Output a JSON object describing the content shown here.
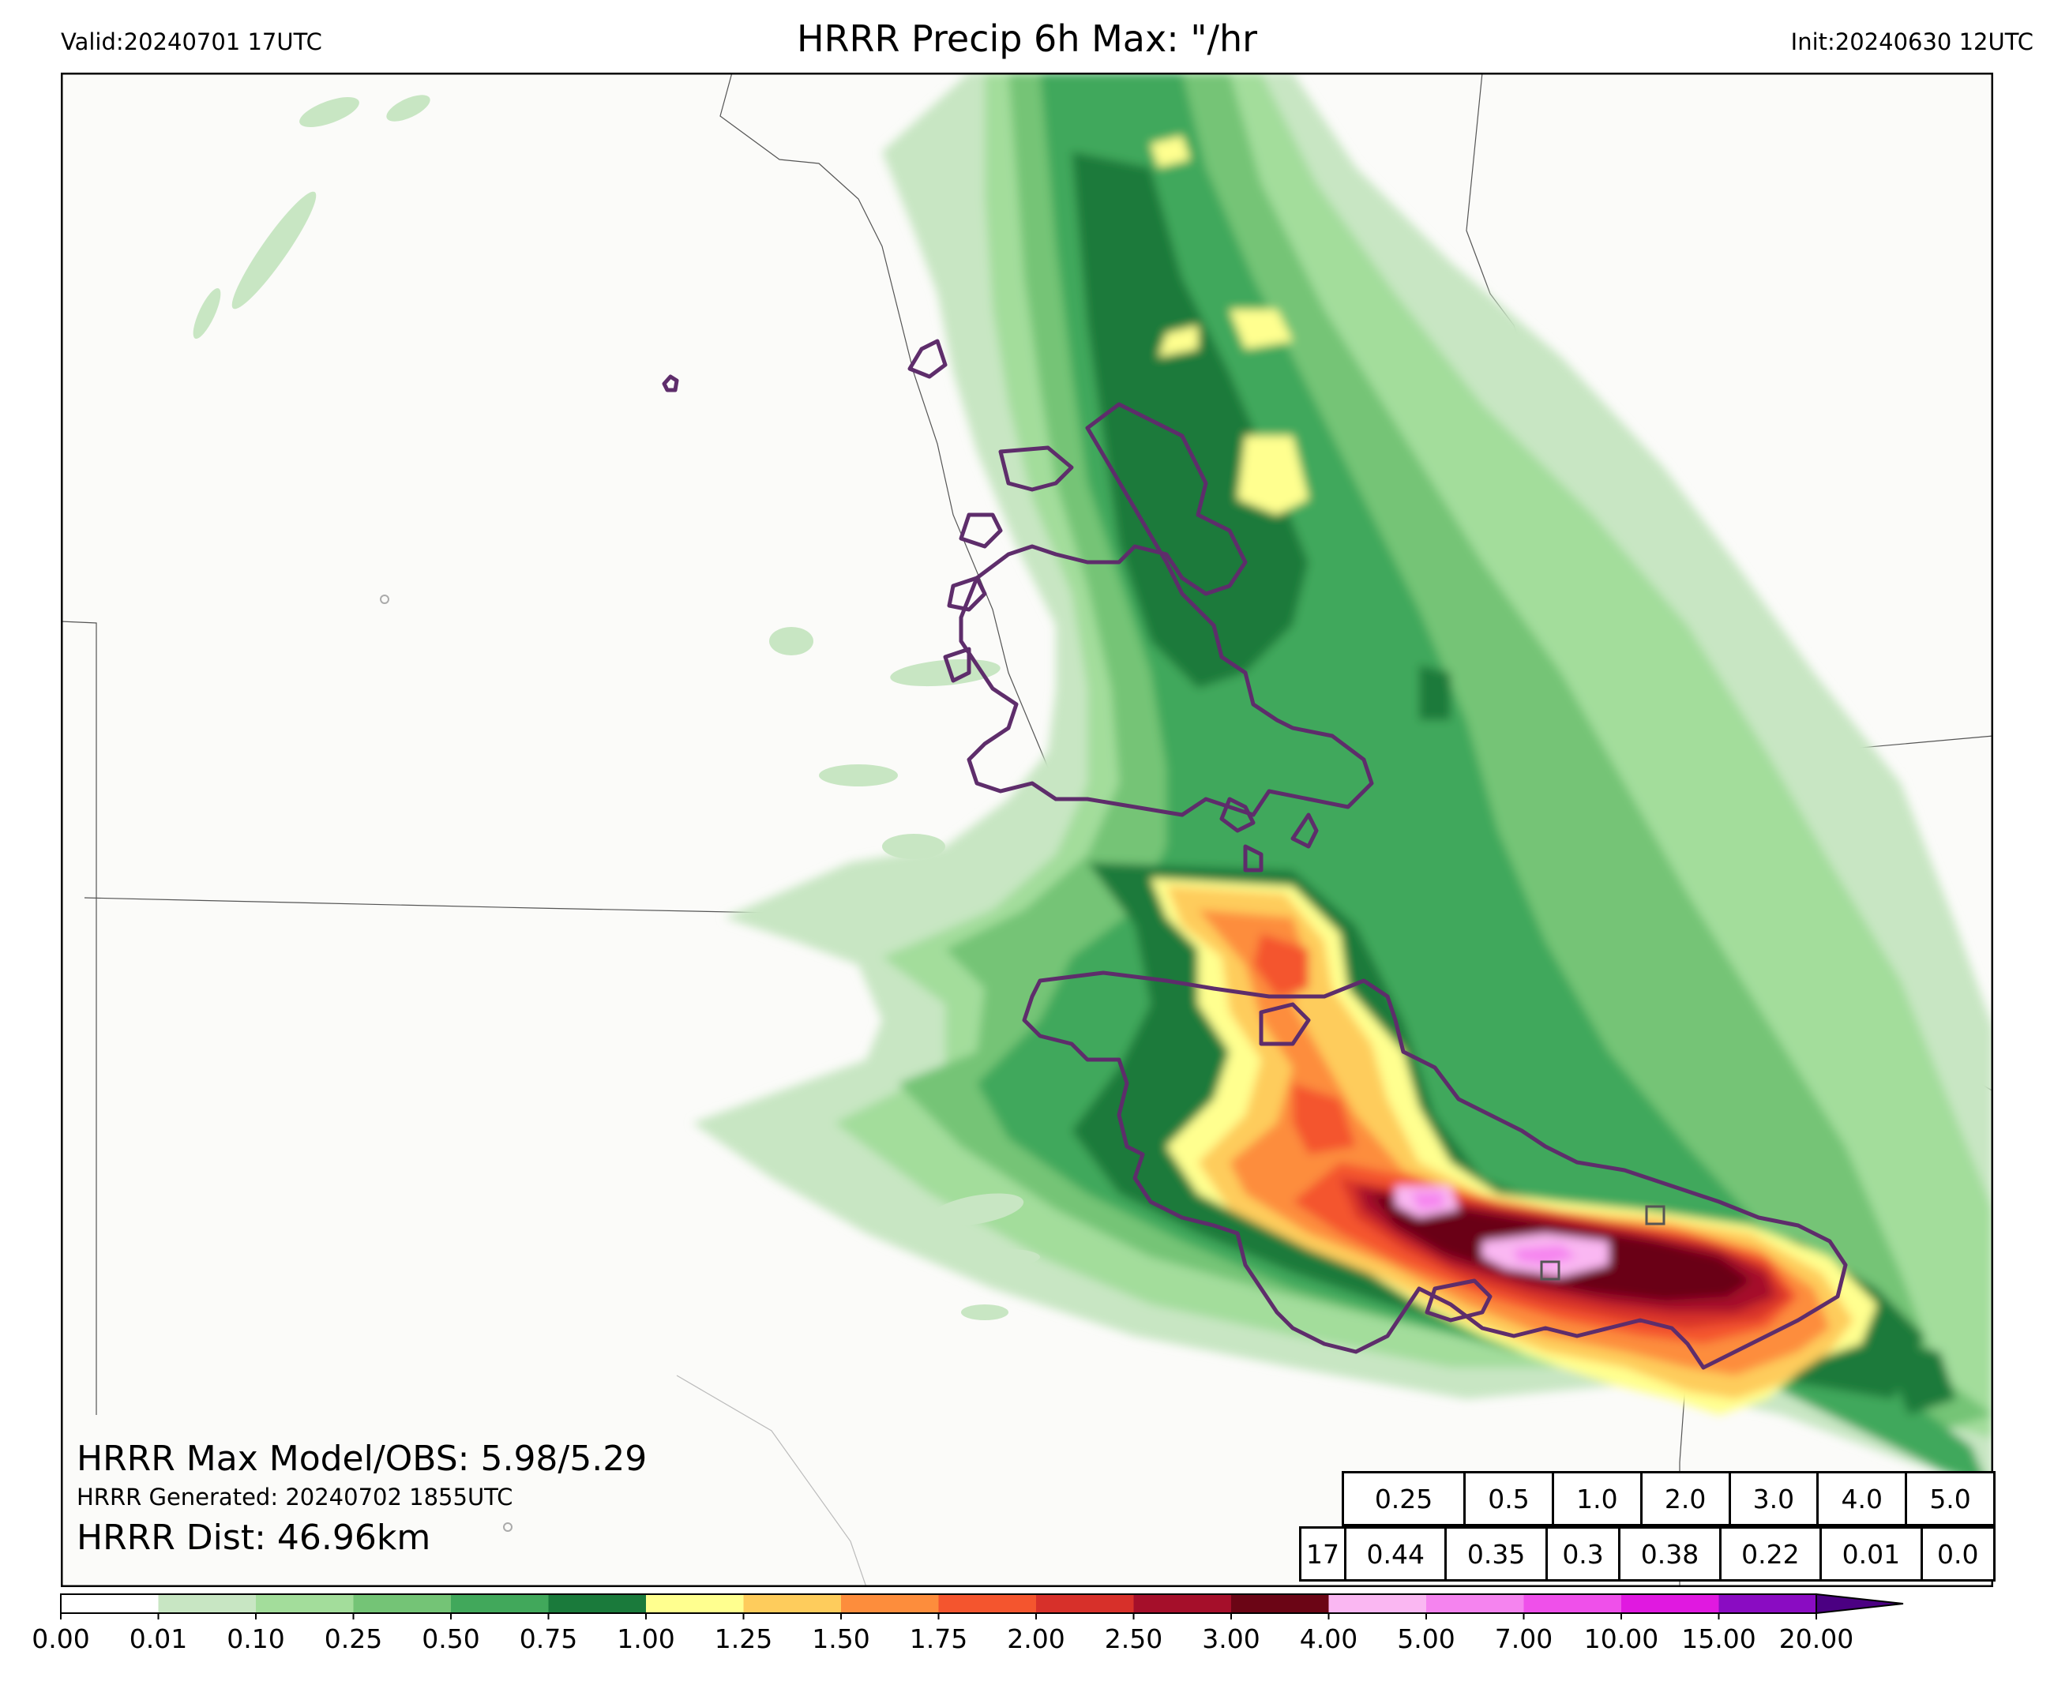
{
  "header": {
    "valid": "Valid:20240701 17UTC",
    "title": "HRRR Precip 6h Max: \"/hr",
    "init": "Init:20240630 12UTC"
  },
  "stats": {
    "max_model_obs": "HRRR Max Model/OBS: 5.98/5.29",
    "generated": "HRRR Generated: 20240702 1855UTC",
    "distance": "HRRR Dist: 46.96km"
  },
  "prob_table": {
    "thresholds": [
      "0.25",
      "0.5",
      "1.0",
      "2.0",
      "3.0",
      "4.0",
      "5.0"
    ],
    "hour": "17",
    "values": [
      "0.44",
      "0.35",
      "0.3",
      "0.38",
      "0.22",
      "0.01",
      "0.0"
    ]
  },
  "colorbar": {
    "ticks": [
      "0.00",
      "0.01",
      "0.10",
      "0.25",
      "0.50",
      "0.75",
      "1.00",
      "1.25",
      "1.50",
      "1.75",
      "2.00",
      "2.50",
      "3.00",
      "4.00",
      "5.00",
      "7.00",
      "10.00",
      "15.00",
      "20.00"
    ],
    "colors": [
      "#ffffff",
      "#c8e6c3",
      "#a3dd9b",
      "#74c476",
      "#41a85b",
      "#1a7a3b",
      "#ffff8f",
      "#fecc5c",
      "#fd8d3c",
      "#f4552e",
      "#d7302a",
      "#a50f2a",
      "#6b0515",
      "#fab7f2",
      "#f584ef",
      "#ef50ea",
      "#e019e0",
      "#8a0cc2"
    ],
    "extend_color": "#4b0082"
  },
  "map": {
    "background": "#fbfbf9",
    "obs_contour_color": "#5e2d6b",
    "station_marker_color": "#555555"
  }
}
